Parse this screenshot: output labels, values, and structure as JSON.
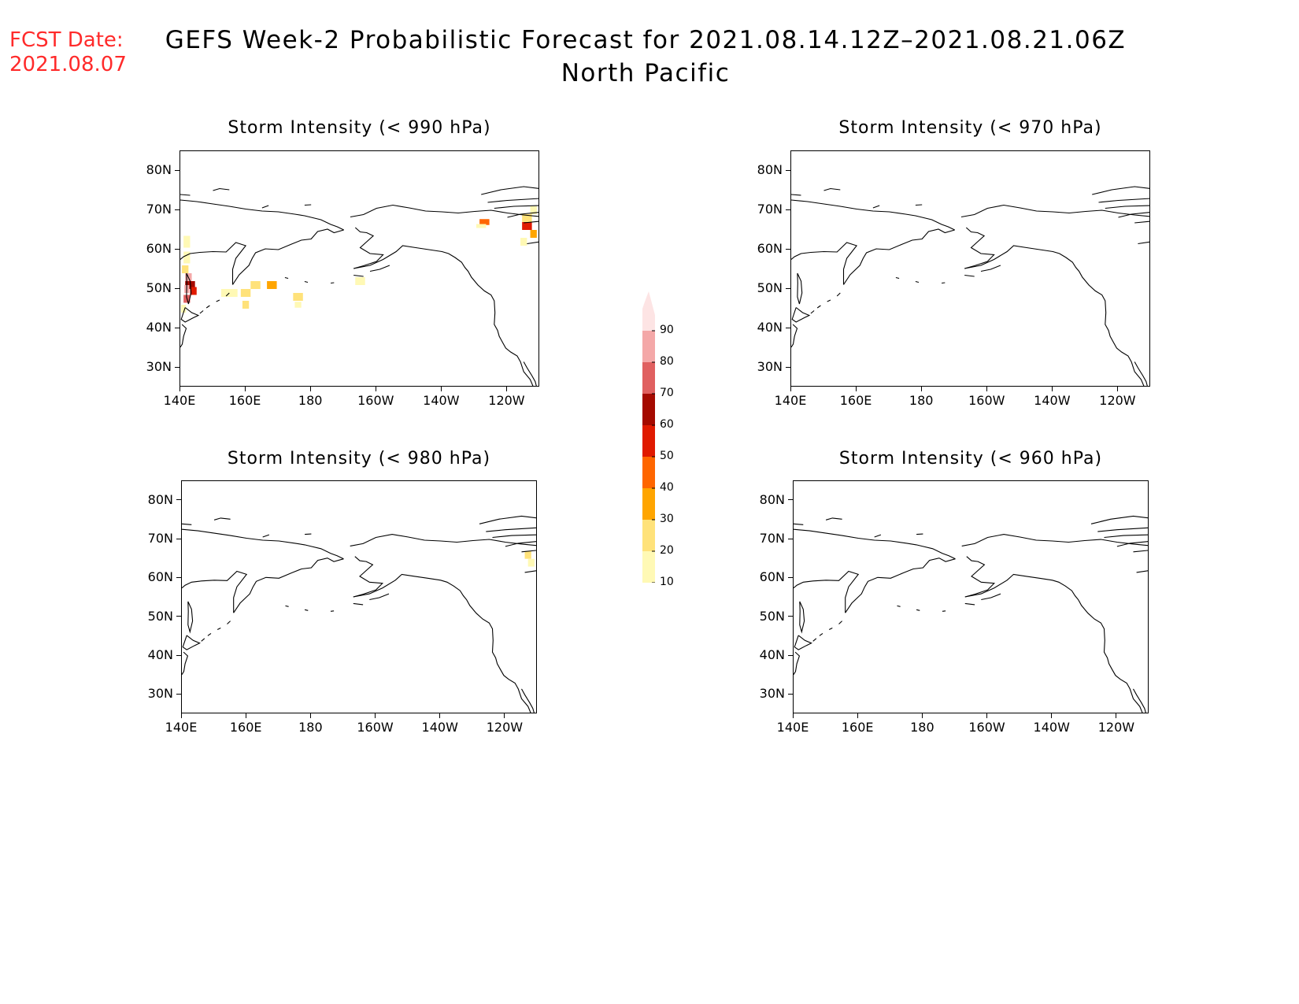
{
  "header": {
    "fcst_label": "FCST Date:",
    "fcst_date": "2021.08.07",
    "title_line1": "GEFS Week-2 Probabilistic Forecast for 2021.08.14.12Z–2021.08.21.06Z",
    "title_line2": "North Pacific"
  },
  "axes": {
    "lat_labels": [
      "80N",
      "70N",
      "60N",
      "50N",
      "40N",
      "30N"
    ],
    "lon_labels": [
      "140E",
      "160E",
      "180",
      "160W",
      "140W",
      "120W"
    ]
  },
  "panels": [
    {
      "id": "p990",
      "title": "Storm Intensity (< 990 hPa)",
      "threshold_hPa": 990
    },
    {
      "id": "p970",
      "title": "Storm Intensity (< 970 hPa)",
      "threshold_hPa": 970
    },
    {
      "id": "p980",
      "title": "Storm Intensity (< 980 hPa)",
      "threshold_hPa": 980
    },
    {
      "id": "p960",
      "title": "Storm Intensity (< 960 hPa)",
      "threshold_hPa": 960
    }
  ],
  "colorbar": {
    "labels": [
      "10",
      "20",
      "30",
      "40",
      "50",
      "60",
      "70",
      "80",
      "90"
    ],
    "colors": [
      "#fff9b5",
      "#ffe27a",
      "#ffa500",
      "#ff6600",
      "#e01a00",
      "#a50a00",
      "#e06060",
      "#f4a8a8",
      "#fde4e4"
    ]
  }
}
